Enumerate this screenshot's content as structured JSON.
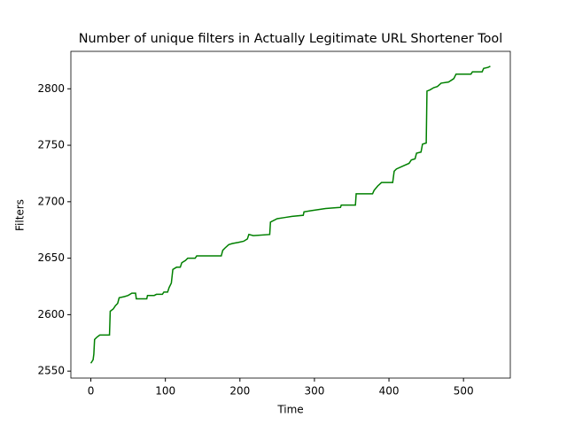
{
  "chart_data": {
    "type": "line",
    "title": "Number of unique filters in Actually Legitimate URL Shortener Tool",
    "x_label": "Time",
    "y_label": "Filters",
    "x": [
      0,
      3,
      4,
      5,
      8,
      12,
      25,
      26,
      30,
      33,
      36,
      38,
      45,
      50,
      55,
      60,
      61,
      75,
      76,
      85,
      88,
      96,
      98,
      103,
      105,
      108,
      110,
      115,
      120,
      122,
      127,
      130,
      140,
      142,
      175,
      177,
      180,
      185,
      190,
      198,
      205,
      210,
      212,
      218,
      240,
      241,
      250,
      260,
      270,
      285,
      286,
      295,
      305,
      315,
      335,
      336,
      355,
      356,
      378,
      380,
      385,
      390,
      405,
      407,
      410,
      420,
      427,
      430,
      435,
      437,
      443,
      445,
      450,
      451,
      455,
      460,
      465,
      470,
      480,
      487,
      490,
      510,
      512,
      525,
      527,
      533,
      536
    ],
    "series": [
      {
        "name": "Filters",
        "color": "#008000",
        "values": [
          2557,
          2560,
          2565,
          2578,
          2580,
          2582,
          2582,
          2603,
          2605,
          2608,
          2610,
          2615,
          2616,
          2617,
          2619,
          2619,
          2614,
          2614,
          2617,
          2617,
          2618,
          2618,
          2620,
          2620,
          2624,
          2628,
          2640,
          2642,
          2642,
          2646,
          2648,
          2650,
          2650,
          2652,
          2652,
          2657,
          2659,
          2662,
          2663,
          2664,
          2665,
          2667,
          2671,
          2670,
          2671,
          2682,
          2685,
          2686,
          2687,
          2688,
          2691,
          2692,
          2693,
          2694,
          2695,
          2697,
          2697,
          2707,
          2707,
          2710,
          2714,
          2717,
          2717,
          2727,
          2729,
          2732,
          2734,
          2737,
          2738,
          2743,
          2744,
          2751,
          2752,
          2798,
          2799,
          2801,
          2802,
          2805,
          2806,
          2809,
          2813,
          2813,
          2815,
          2815,
          2818,
          2819,
          2820
        ]
      }
    ],
    "xlim": [
      -26.8,
      562.8
    ],
    "ylim": [
      2543.85,
      2833.15
    ],
    "xticks": [
      0,
      100,
      200,
      300,
      400,
      500
    ],
    "yticks": [
      2550,
      2600,
      2650,
      2700,
      2750,
      2800
    ],
    "grid": false
  }
}
